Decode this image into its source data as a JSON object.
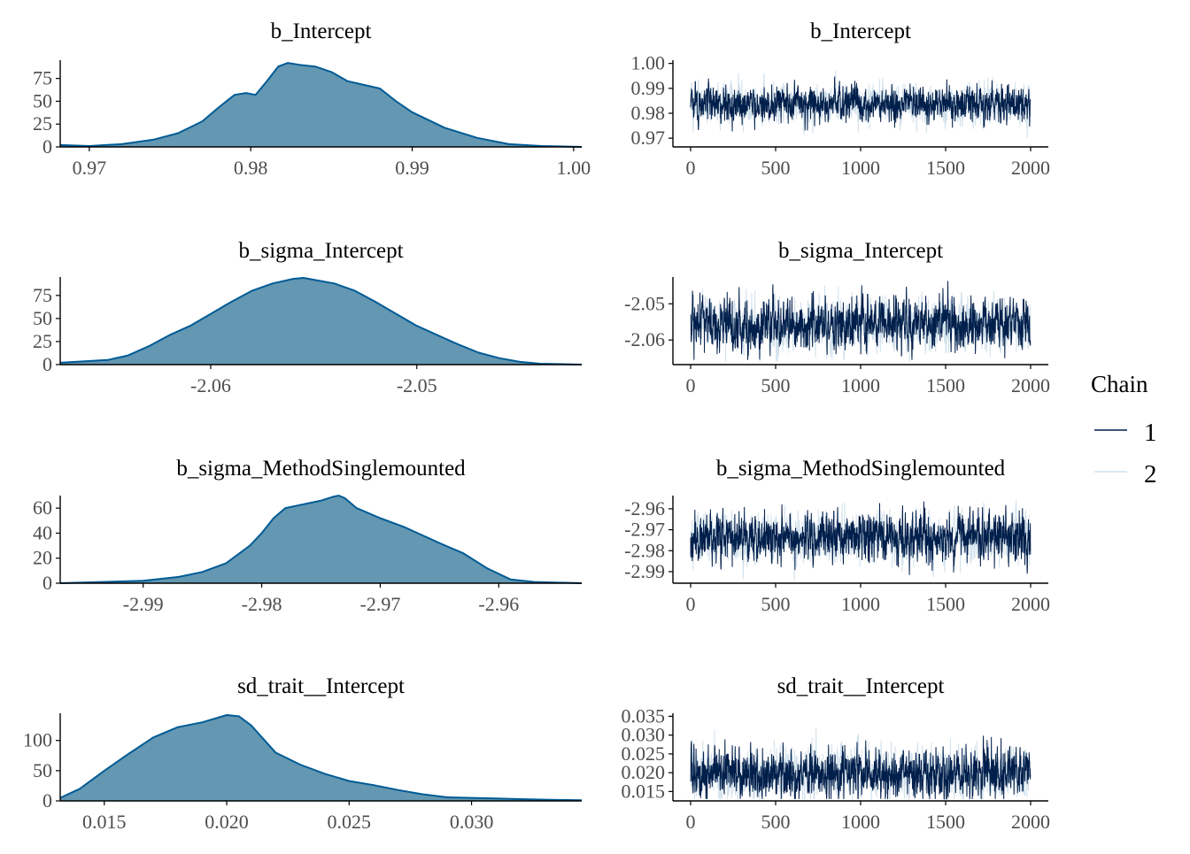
{
  "colors": {
    "density_fill": "#6497b1",
    "density_line": "#005b96",
    "chain1": "#011f4b",
    "chain2": "#d1e1ec",
    "axis": "#000000"
  },
  "legend": {
    "title": "Chain",
    "entries": [
      {
        "label": "1",
        "color": "#011f4b"
      },
      {
        "label": "2",
        "color": "#d1e1ec"
      }
    ]
  },
  "chart_data": [
    {
      "type": "area",
      "title": "b_Intercept",
      "xlim": [
        0.9682,
        1.0005
      ],
      "ylim": [
        0,
        95
      ],
      "xticks": [
        0.97,
        0.98,
        0.99,
        1.0
      ],
      "xtick_labels": [
        "0.97",
        "0.98",
        "0.99",
        "1.00"
      ],
      "yticks": [
        0,
        25,
        50,
        75
      ],
      "ytick_labels": [
        "0",
        "25",
        "50",
        "75"
      ],
      "x": [
        0.9682,
        0.97,
        0.972,
        0.974,
        0.9755,
        0.977,
        0.978,
        0.979,
        0.9797,
        0.9803,
        0.981,
        0.9817,
        0.9823,
        0.983,
        0.984,
        0.985,
        0.986,
        0.987,
        0.988,
        0.989,
        0.99,
        0.992,
        0.994,
        0.996,
        0.998,
        1.0005
      ],
      "y": [
        2,
        1,
        3,
        8,
        15,
        28,
        43,
        57,
        59,
        57,
        72,
        88,
        92,
        90,
        88,
        82,
        72,
        68,
        64,
        50,
        38,
        21,
        10,
        3,
        1,
        0
      ]
    },
    {
      "type": "line",
      "title": "b_Intercept",
      "xlim": [
        0,
        2000
      ],
      "ylim": [
        0.9665,
        1.0013
      ],
      "xticks": [
        0,
        500,
        1000,
        1500,
        2000
      ],
      "xtick_labels": [
        "0",
        "500",
        "1000",
        "1500",
        "2000"
      ],
      "yticks": [
        0.97,
        0.98,
        0.99,
        1.0
      ],
      "ytick_labels": [
        "0.97",
        "0.98",
        "0.99",
        "1.00"
      ],
      "series": [
        {
          "name": "1",
          "mean": 0.9838,
          "sd": 0.0035,
          "min": 0.968,
          "max": 0.996
        },
        {
          "name": "2",
          "mean": 0.9838,
          "sd": 0.0036,
          "min": 0.9685,
          "max": 1.001
        }
      ]
    },
    {
      "type": "area",
      "title": "b_sigma_Intercept",
      "xlim": [
        -2.0673,
        -2.042
      ],
      "ylim": [
        0,
        95
      ],
      "xticks": [
        -2.06,
        -2.05
      ],
      "xtick_labels": [
        "-2.06",
        "-2.05"
      ],
      "yticks": [
        0,
        25,
        50,
        75
      ],
      "ytick_labels": [
        "0",
        "25",
        "50",
        "75"
      ],
      "x": [
        -2.0673,
        -2.065,
        -2.064,
        -2.063,
        -2.062,
        -2.061,
        -2.06,
        -2.059,
        -2.058,
        -2.057,
        -2.056,
        -2.0555,
        -2.055,
        -2.054,
        -2.053,
        -2.052,
        -2.051,
        -2.05,
        -2.049,
        -2.048,
        -2.047,
        -2.046,
        -2.045,
        -2.044,
        -2.042
      ],
      "y": [
        2,
        5,
        10,
        20,
        32,
        42,
        55,
        68,
        80,
        88,
        93,
        94,
        92,
        88,
        80,
        68,
        55,
        42,
        32,
        22,
        13,
        7,
        3,
        1,
        0
      ]
    },
    {
      "type": "line",
      "title": "b_sigma_Intercept",
      "xlim": [
        0,
        2000
      ],
      "ylim": [
        -2.0668,
        -2.0426
      ],
      "xticks": [
        0,
        500,
        1000,
        1500,
        2000
      ],
      "xtick_labels": [
        "0",
        "500",
        "1000",
        "1500",
        "2000"
      ],
      "yticks": [
        -2.06,
        -2.05
      ],
      "ytick_labels": [
        "-2.06",
        "-2.05"
      ],
      "series": [
        {
          "name": "1",
          "mean": -2.0555,
          "sd": 0.0035,
          "min": -2.0655,
          "max": -2.0435
        },
        {
          "name": "2",
          "mean": -2.0555,
          "sd": 0.0035,
          "min": -2.066,
          "max": -2.0435
        }
      ]
    },
    {
      "type": "area",
      "title": "b_sigma_MethodSinglemounted",
      "xlim": [
        -2.997,
        -2.953
      ],
      "ylim": [
        0,
        70
      ],
      "xticks": [
        -2.99,
        -2.98,
        -2.97,
        -2.96
      ],
      "xtick_labels": [
        "-2.99",
        "-2.98",
        "-2.97",
        "-2.96"
      ],
      "yticks": [
        0,
        20,
        40,
        60
      ],
      "ytick_labels": [
        "0",
        "20",
        "40",
        "60"
      ],
      "x": [
        -2.997,
        -2.99,
        -2.987,
        -2.985,
        -2.983,
        -2.981,
        -2.98,
        -2.979,
        -2.978,
        -2.977,
        -2.976,
        -2.975,
        -2.974,
        -2.9735,
        -2.973,
        -2.972,
        -2.97,
        -2.968,
        -2.965,
        -2.963,
        -2.961,
        -2.959,
        -2.957,
        -2.953
      ],
      "y": [
        0,
        2,
        5,
        9,
        16,
        30,
        40,
        52,
        60,
        62,
        64,
        66,
        69,
        70,
        68,
        60,
        52,
        45,
        32,
        24,
        12,
        3,
        1,
        0
      ]
    },
    {
      "type": "line",
      "title": "b_sigma_MethodSinglemounted",
      "xlim": [
        0,
        2000
      ],
      "ylim": [
        -2.9955,
        -2.9537
      ],
      "xticks": [
        0,
        500,
        1000,
        1500,
        2000
      ],
      "xtick_labels": [
        "0",
        "500",
        "1000",
        "1500",
        "2000"
      ],
      "yticks": [
        -2.96,
        -2.97,
        -2.98,
        -2.99
      ],
      "ytick_labels": [
        "-2.96",
        "-2.97",
        "-2.98",
        "-2.99"
      ],
      "series": [
        {
          "name": "1",
          "mean": -2.974,
          "sd": 0.0055,
          "min": -2.9945,
          "max": -2.9565
        },
        {
          "name": "2",
          "mean": -2.974,
          "sd": 0.0055,
          "min": -2.994,
          "max": -2.9545
        }
      ]
    },
    {
      "type": "area",
      "title": "sd_trait__Intercept",
      "xlim": [
        0.0132,
        0.0345
      ],
      "ylim": [
        0,
        145
      ],
      "xticks": [
        0.015,
        0.02,
        0.025,
        0.03
      ],
      "xtick_labels": [
        "0.015",
        "0.020",
        "0.025",
        "0.030"
      ],
      "yticks": [
        0,
        50,
        100
      ],
      "ytick_labels": [
        "0",
        "50",
        "100"
      ],
      "x": [
        0.0132,
        0.014,
        0.015,
        0.016,
        0.017,
        0.018,
        0.019,
        0.02,
        0.0205,
        0.021,
        0.022,
        0.023,
        0.024,
        0.025,
        0.026,
        0.027,
        0.028,
        0.029,
        0.03,
        0.031,
        0.032,
        0.033,
        0.0345
      ],
      "y": [
        5,
        20,
        50,
        78,
        105,
        122,
        130,
        142,
        140,
        125,
        80,
        60,
        45,
        33,
        26,
        18,
        11,
        6,
        5,
        4,
        3,
        2,
        1
      ]
    },
    {
      "type": "line",
      "title": "sd_trait__Intercept",
      "xlim": [
        0,
        2000
      ],
      "ylim": [
        0.0125,
        0.0358
      ],
      "xticks": [
        0,
        500,
        1000,
        1500,
        2000
      ],
      "xtick_labels": [
        "0",
        "500",
        "1000",
        "1500",
        "2000"
      ],
      "yticks": [
        0.015,
        0.02,
        0.025,
        0.03,
        0.035
      ],
      "ytick_labels": [
        "0.015",
        "0.020",
        "0.025",
        "0.030",
        "0.035"
      ],
      "series": [
        {
          "name": "1",
          "mean": 0.0198,
          "sd": 0.0032,
          "min": 0.013,
          "max": 0.0345
        },
        {
          "name": "2",
          "mean": 0.0198,
          "sd": 0.0033,
          "min": 0.013,
          "max": 0.034
        }
      ]
    }
  ]
}
